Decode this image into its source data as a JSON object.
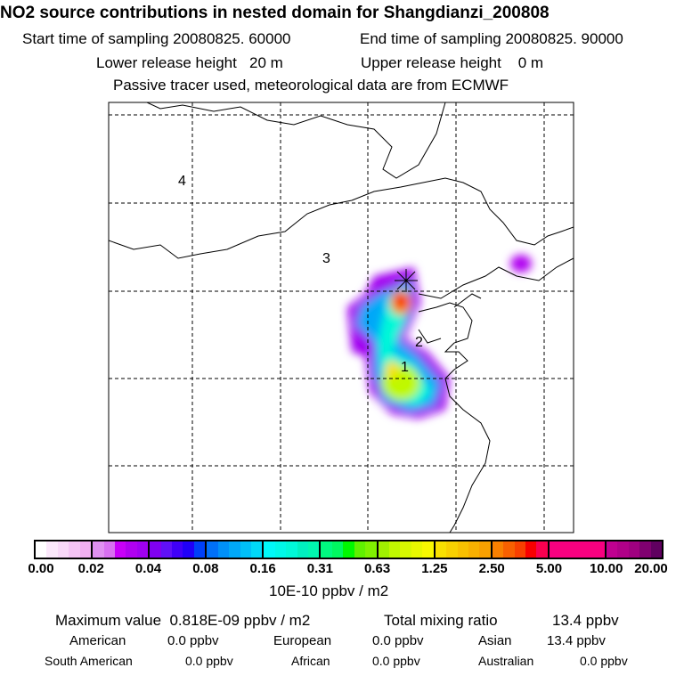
{
  "title": "NO2 source contributions in nested domain for Shangdianzi_200808",
  "header": {
    "start_label": "Start time of sampling 20080825. 60000",
    "end_label": "End time of sampling 20080825. 90000",
    "lower_label": "Lower release height   20 m",
    "upper_label": "Upper release height    0 m",
    "note": "Passive tracer used, meteorological data are from ECMWF"
  },
  "chart_data": {
    "type": "heatmap",
    "title": "NO2 source contributions in nested domain for Shangdianzi_200808",
    "region_labels": [
      "1",
      "2",
      "3",
      "4"
    ],
    "colorbar": {
      "unit_label": "10E-10 ppbv / m2",
      "tick_labels": [
        "0.00",
        "0.02",
        "0.04",
        "0.08",
        "0.16",
        "0.31",
        "0.63",
        "1.25",
        "2.50",
        "5.00",
        "10.00",
        "20.00"
      ],
      "colors": [
        [
          "#ffffff",
          "#fbe8fb",
          "#f8d8f8",
          "#f4c4f4",
          "#f0b0f0"
        ],
        [
          "#e090f0",
          "#d870f0",
          "#c800f8",
          "#b000f0",
          "#a000f0"
        ],
        [
          "#8000f0",
          "#6010f8",
          "#4000f8",
          "#2000f8",
          "#0040f8"
        ],
        [
          "#0070f8",
          "#0090f8",
          "#00a8f8",
          "#00c0f8",
          "#00d8f8"
        ],
        [
          "#00f8f8",
          "#00f8e8",
          "#00f8d8",
          "#00f0c0",
          "#00f8b0"
        ],
        [
          "#00f880",
          "#00f860",
          "#00f800",
          "#60f000",
          "#80f000"
        ],
        [
          "#a0f000",
          "#c0f800",
          "#d8f800",
          "#e8f800",
          "#f8f800"
        ],
        [
          "#f8e000",
          "#f8d000",
          "#f8c000",
          "#f8b000",
          "#f8a000"
        ],
        [
          "#f88000",
          "#f86000",
          "#f84000",
          "#f80000",
          "#f80050"
        ],
        [
          "#f80080",
          "#f80080",
          "#f80080",
          "#f80080",
          "#f80080"
        ],
        [
          "#c00090",
          "#b00088",
          "#a00080",
          "#800070",
          "#600060"
        ]
      ]
    },
    "maximum_value": "0.818E-09 ppbv / m2"
  },
  "stats": {
    "max_label": "Maximum value  0.818E-09 ppbv / m2",
    "total_label": "Total mixing ratio",
    "total_value": "13.4 ppbv",
    "rows": [
      [
        "American",
        "0.0 ppbv",
        "European",
        "0.0 ppbv",
        "Asian",
        "13.4 ppbv"
      ],
      [
        "South American",
        "0.0 ppbv",
        "African",
        "0.0 ppbv",
        "Australian",
        "0.0 ppbv"
      ]
    ]
  }
}
